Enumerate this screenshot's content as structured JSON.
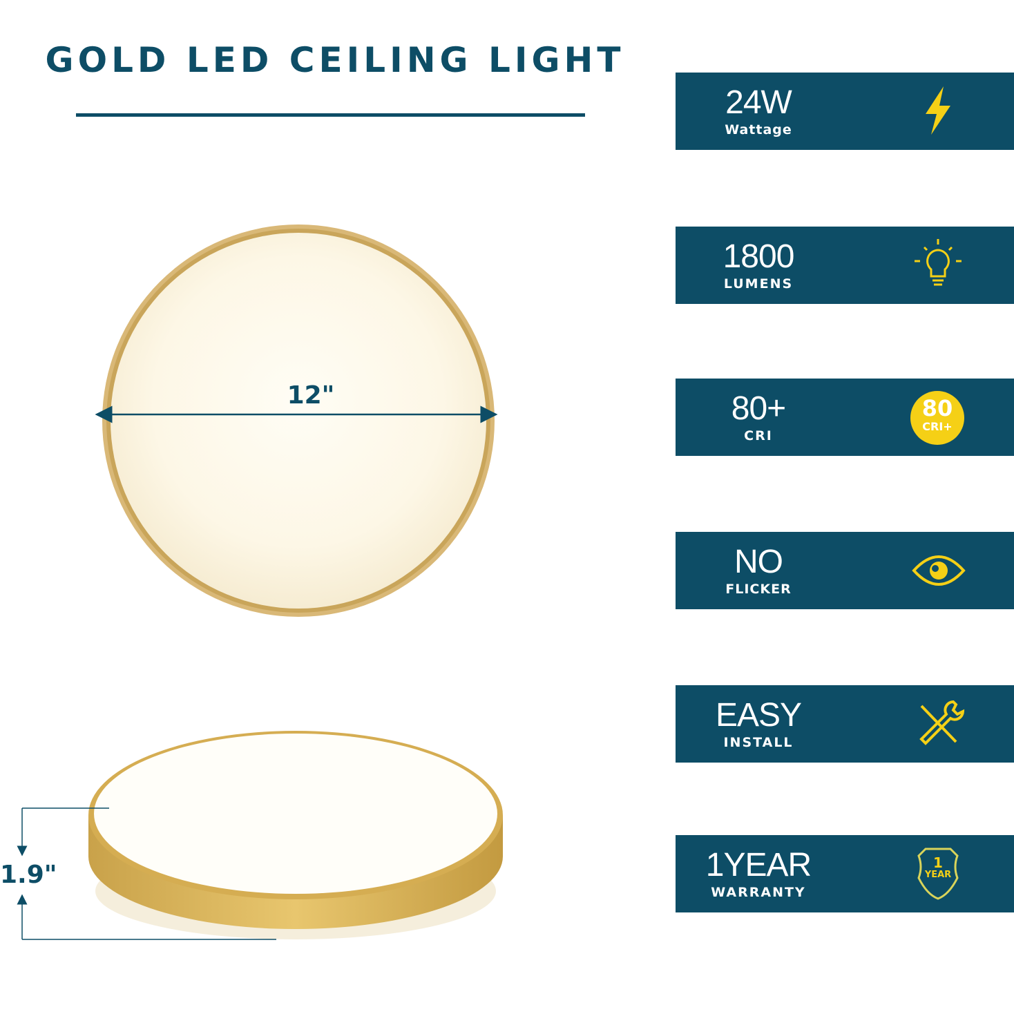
{
  "title": "GOLD LED CEILING LIGHT",
  "dimensions": {
    "diameter": "12\"",
    "height": "1.9\""
  },
  "colors": {
    "brand": "#0d4d66",
    "accent": "#f5d016",
    "gold": "#c9a55a"
  },
  "features": [
    {
      "value": "24W",
      "label": "Wattage",
      "icon": "lightning-bolt-icon"
    },
    {
      "value": "1800",
      "label": "LUMENS",
      "icon": "light-bulb-icon"
    },
    {
      "value": "80+",
      "label": "CRI",
      "icon": "cri-badge-icon",
      "badge_top": "80",
      "badge_bottom": "CRI+"
    },
    {
      "value": "NO",
      "label": "FLICKER",
      "icon": "eye-icon"
    },
    {
      "value": "EASY",
      "label": "INSTALL",
      "icon": "tools-icon"
    },
    {
      "value": "1YEAR",
      "label": "WARRANTY",
      "icon": "shield-icon",
      "badge_top": "1",
      "badge_bottom": "YEAR"
    }
  ]
}
